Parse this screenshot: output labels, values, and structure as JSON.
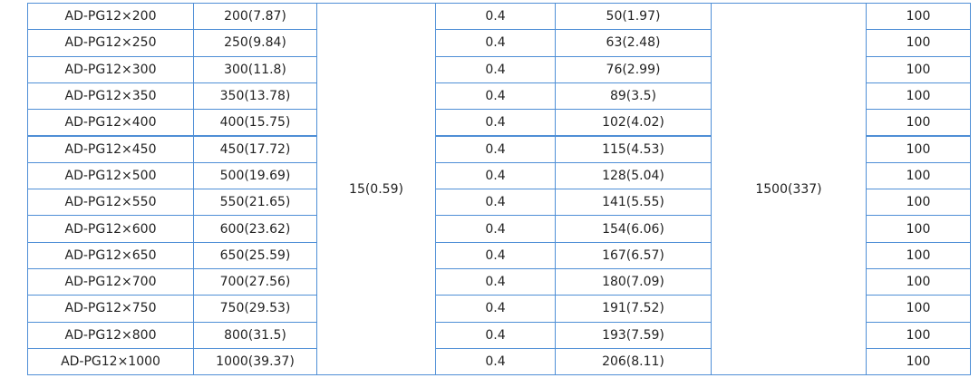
{
  "table": {
    "rows": [
      [
        "AD-PG12×200",
        "200(7.87)",
        "0.4",
        "50(1.97)",
        "100"
      ],
      [
        "AD-PG12×250",
        "250(9.84)",
        "0.4",
        "63(2.48)",
        "100"
      ],
      [
        "AD-PG12×300",
        "300(11.8)",
        "0.4",
        "76(2.99)",
        "100"
      ],
      [
        "AD-PG12×350",
        "350(13.78)",
        "0.4",
        "89(3.5)",
        "100"
      ],
      [
        "AD-PG12×400",
        "400(15.75)",
        "0.4",
        "102(4.02)",
        "100"
      ],
      [
        "AD-PG12×450",
        "450(17.72)",
        "0.4",
        "115(4.53)",
        "100"
      ],
      [
        "AD-PG12×500",
        "500(19.69)",
        "0.4",
        "128(5.04)",
        "100"
      ],
      [
        "AD-PG12×550",
        "550(21.65)",
        "0.4",
        "141(5.55)",
        "100"
      ],
      [
        "AD-PG12×600",
        "600(23.62)",
        "0.4",
        "154(6.06)",
        "100"
      ],
      [
        "AD-PG12×650",
        "650(25.59)",
        "0.4",
        "167(6.57)",
        "100"
      ],
      [
        "AD-PG12×700",
        "700(27.56)",
        "0.4",
        "180(7.09)",
        "100"
      ],
      [
        "AD-PG12×750",
        "750(29.53)",
        "0.4",
        "191(7.52)",
        "100"
      ],
      [
        "AD-PG12×800",
        "800(31.5)",
        "0.4",
        "193(7.59)",
        "100"
      ],
      [
        "AD-PG12×1000",
        "1000(39.37)",
        "0.4",
        "206(8.11)",
        "100"
      ]
    ],
    "merged_cells": [
      "15(0.59)",
      "1500(337)"
    ]
  }
}
